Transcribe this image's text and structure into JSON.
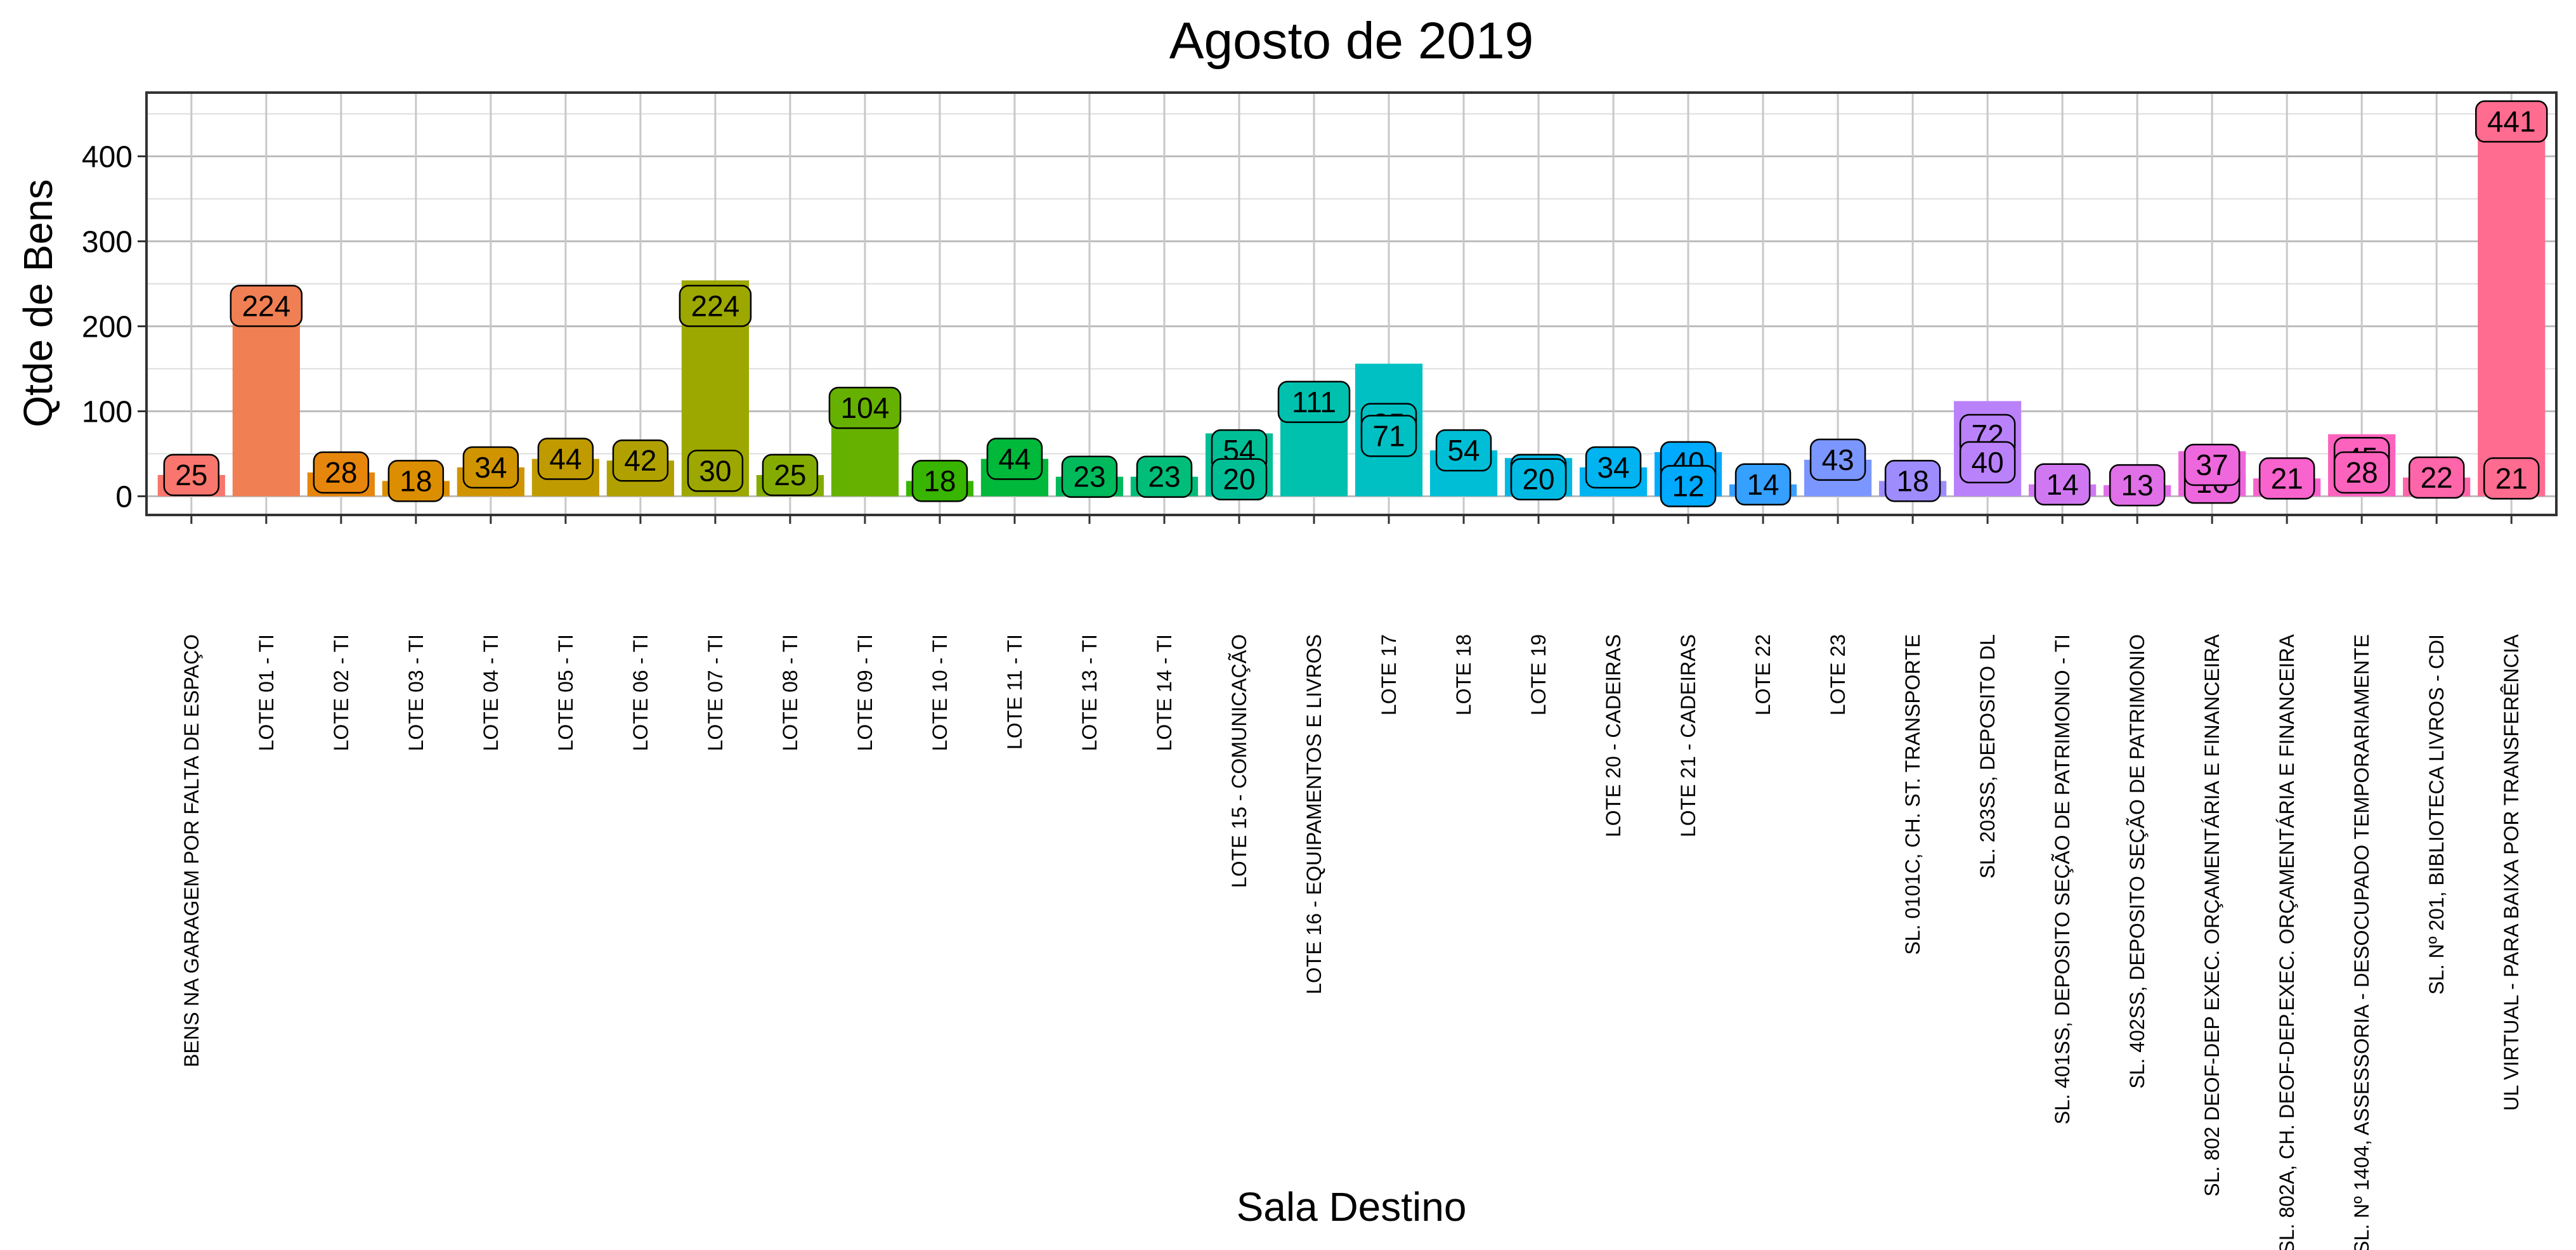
{
  "chart_data": {
    "type": "bar",
    "title": "Agosto  de  2019",
    "xlabel": "Sala Destino",
    "ylabel": "Qtde de Bens",
    "ylim": [
      -22,
      475
    ],
    "yticks": [
      0,
      100,
      200,
      300,
      400
    ],
    "grid": true,
    "legend": "none",
    "bars": [
      {
        "category": "BENS NA GARAGEM POR FALTA DE ESPAÇO",
        "value": 25,
        "labels": [
          25
        ],
        "color": "#F8766D"
      },
      {
        "category": "LOTE 01 - TI",
        "value": 224,
        "labels": [
          224
        ],
        "color": "#F07F53"
      },
      {
        "category": "LOTE 02 - TI",
        "value": 28,
        "labels": [
          28
        ],
        "color": "#E6860C"
      },
      {
        "category": "LOTE 03 - TI",
        "value": 18,
        "labels": [
          18
        ],
        "color": "#DB8E00"
      },
      {
        "category": "LOTE 04 - TI",
        "value": 34,
        "labels": [
          34
        ],
        "color": "#CF9400"
      },
      {
        "category": "LOTE 05 - TI",
        "value": 44,
        "labels": [
          44
        ],
        "color": "#C09B00"
      },
      {
        "category": "LOTE 06 - TI",
        "value": 42,
        "labels": [
          42
        ],
        "color": "#B0A100"
      },
      {
        "category": "LOTE 07 - TI",
        "value": 254,
        "labels": [
          224,
          30
        ],
        "color": "#9CA700"
      },
      {
        "category": "LOTE 08 - TI",
        "value": 25,
        "labels": [
          25
        ],
        "color": "#84AC00"
      },
      {
        "category": "LOTE 09 - TI",
        "value": 104,
        "labels": [
          104
        ],
        "color": "#66B100"
      },
      {
        "category": "LOTE 10 - TI",
        "value": 18,
        "labels": [
          18
        ],
        "color": "#38B500"
      },
      {
        "category": "LOTE 11 - TI",
        "value": 44,
        "labels": [
          44
        ],
        "color": "#00B83A"
      },
      {
        "category": "LOTE 13 - TI",
        "value": 23,
        "labels": [
          23
        ],
        "color": "#00BA5C"
      },
      {
        "category": "LOTE 14 - TI",
        "value": 23,
        "labels": [
          23
        ],
        "color": "#00BD7A"
      },
      {
        "category": "LOTE 15 - COMUNICAÇÃO",
        "value": 74,
        "labels": [
          54,
          20
        ],
        "color": "#00BF96"
      },
      {
        "category": "LOTE 16 - EQUIPAMENTOS E LIVROS",
        "value": 111,
        "labels": [
          111
        ],
        "color": "#00C0AE"
      },
      {
        "category": "LOTE 17",
        "value": 156,
        "labels": [
          85,
          71
        ],
        "color": "#00C0C3"
      },
      {
        "category": "LOTE 18",
        "value": 54,
        "labels": [
          54
        ],
        "color": "#00BED5"
      },
      {
        "category": "LOTE 19",
        "value": 45,
        "labels": [
          25,
          20
        ],
        "color": "#00BAE4"
      },
      {
        "category": "LOTE 20 - CADEIRAS",
        "value": 34,
        "labels": [
          34
        ],
        "color": "#00B3F1"
      },
      {
        "category": "LOTE 21 - CADEIRAS",
        "value": 52,
        "labels": [
          40,
          12
        ],
        "color": "#00AAFE"
      },
      {
        "category": "LOTE 22",
        "value": 14,
        "labels": [
          14
        ],
        "color": "#35A0FF"
      },
      {
        "category": "LOTE 23",
        "value": 43,
        "labels": [
          43
        ],
        "color": "#7B96FF"
      },
      {
        "category": "SL. 0101C, CH. ST. TRANSPORTE",
        "value": 18,
        "labels": [
          18
        ],
        "color": "#9E8CFF"
      },
      {
        "category": "SL. 203SS, DEPOSITO DL",
        "value": 112,
        "labels": [
          72,
          40
        ],
        "color": "#BA82FA"
      },
      {
        "category": "SL. 401SS, DEPOSITO SEÇÃO DE PATRIMONIO - TI",
        "value": 14,
        "labels": [
          14
        ],
        "color": "#D078F2"
      },
      {
        "category": "SL. 402SS, DEPOSITO SEÇÃO DE PATRIMONIO",
        "value": 13,
        "labels": [
          13
        ],
        "color": "#E06FE8"
      },
      {
        "category": "SL. 802 DEOF-DEP EXEC. ORÇAMENTÁRIA E FINANCEIRA",
        "value": 53,
        "labels": [
          16,
          37
        ],
        "color": "#EE67DC"
      },
      {
        "category": "SL. 802A, CH. DEOF-DEP.EXEC. ORÇAMENTÁRIA E FINANCEIRA",
        "value": 21,
        "labels": [
          21
        ],
        "color": "#F863CD"
      },
      {
        "category": "SL. Nº 1404, ASSESSORIA - DESOCUPADO TEMPORARIAMENTE",
        "value": 73,
        "labels": [
          45,
          28
        ],
        "color": "#FD63BD"
      },
      {
        "category": "SL. Nº 201, BIBLIOTECA LIVROS - CDI",
        "value": 22,
        "labels": [
          22
        ],
        "color": "#FF66AA"
      },
      {
        "category": "UL VIRTUAL - PARA BAIXA POR TRANSFERÊNCIA",
        "value": 462,
        "labels": [
          441,
          21
        ],
        "color": "#FF6C90"
      }
    ]
  }
}
